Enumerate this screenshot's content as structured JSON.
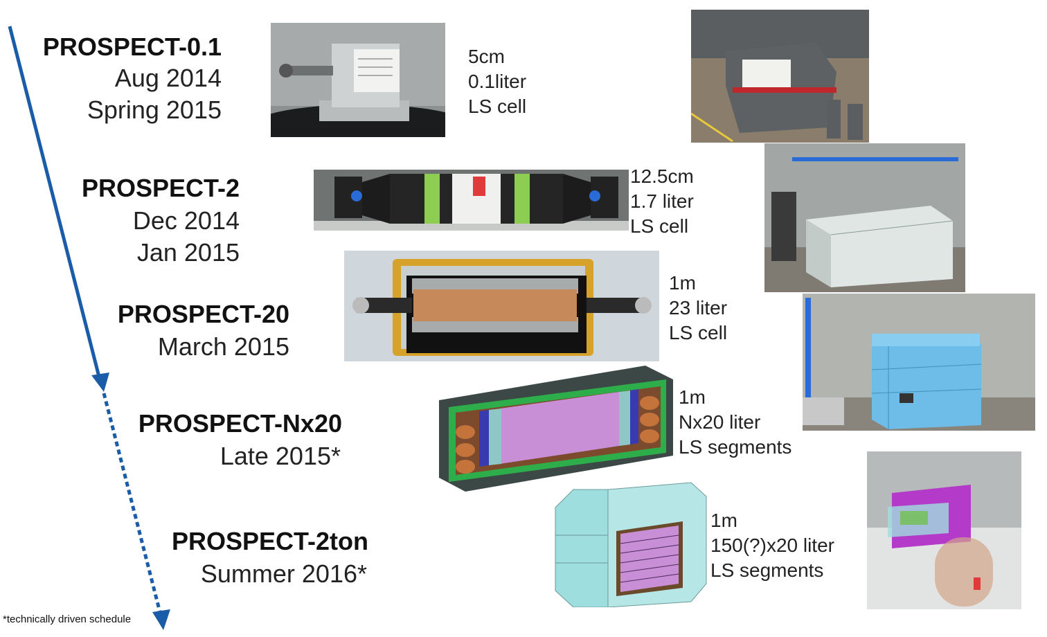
{
  "stages": [
    {
      "title": "PROSPECT-0.1",
      "dates": [
        "Aug 2014",
        "Spring 2015"
      ],
      "specs": [
        "5cm",
        "0.1liter",
        "LS cell"
      ]
    },
    {
      "title": "PROSPECT-2",
      "dates": [
        "Dec 2014",
        "Jan 2015"
      ],
      "specs": [
        "12.5cm",
        "1.7 liter",
        "LS cell"
      ]
    },
    {
      "title": "PROSPECT-20",
      "dates": [
        "March 2015"
      ],
      "specs": [
        "1m",
        "23 liter",
        "LS cell"
      ]
    },
    {
      "title": "PROSPECT-Nx20",
      "dates": [
        "Late 2015*"
      ],
      "specs": [
        "1m",
        "Nx20 liter",
        "LS segments"
      ]
    },
    {
      "title": "PROSPECT-2ton",
      "dates": [
        "Summer 2016*"
      ],
      "specs": [
        "1m",
        "150(?)x20 liter",
        "LS segments"
      ]
    }
  ],
  "footnote": "*technically driven schedule",
  "colors": {
    "arrow": "#1a5ca8",
    "shield_green": "#2eae4a",
    "segment_purple": "#c98fd6",
    "shell_dark": "#3b4846",
    "cyan_block": "#9fdede",
    "magenta_block": "#b43bc9"
  }
}
